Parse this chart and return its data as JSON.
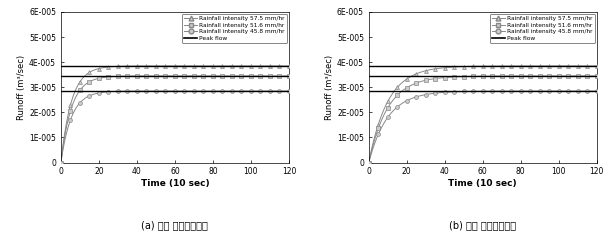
{
  "title_a": "(a) 관측 유출수문공선",
  "title_b": "(b) 모의 유출수문공선",
  "xlabel": "Time (10 sec)",
  "ylabel": "Runoff (m³/sec)",
  "xlim": [
    0,
    120
  ],
  "ylim": [
    0,
    6e-05
  ],
  "ytick_vals": [
    0,
    1e-05,
    2e-05,
    3e-05,
    4e-05,
    5e-05,
    6e-05
  ],
  "ytick_labels": [
    "0",
    "1E-005",
    "2E-005",
    "3E-005",
    "4E-005",
    "5E-005",
    "6E-005"
  ],
  "xticks": [
    0,
    20,
    40,
    60,
    80,
    100,
    120
  ],
  "legend_entries": [
    "Rainfall intensity 57.5 mm/hr",
    "Rainfall intensity 51.6 mm/hr",
    "Rainfall intensity 45.8 mm/hr",
    "Peak flow"
  ],
  "peak_57": 3.85e-05,
  "peak_51": 3.45e-05,
  "peak_45": 2.85e-05,
  "gray": "#888888",
  "black": "#000000",
  "marker57": "^",
  "marker51": "s",
  "marker45": "o",
  "k_obs_57": 0.18,
  "k_obs_51": 0.18,
  "k_obs_45": 0.18,
  "k_sim_57": 0.1,
  "k_sim_51": 0.1,
  "k_sim_45": 0.1,
  "marker_interval": 5,
  "background": "#ffffff"
}
